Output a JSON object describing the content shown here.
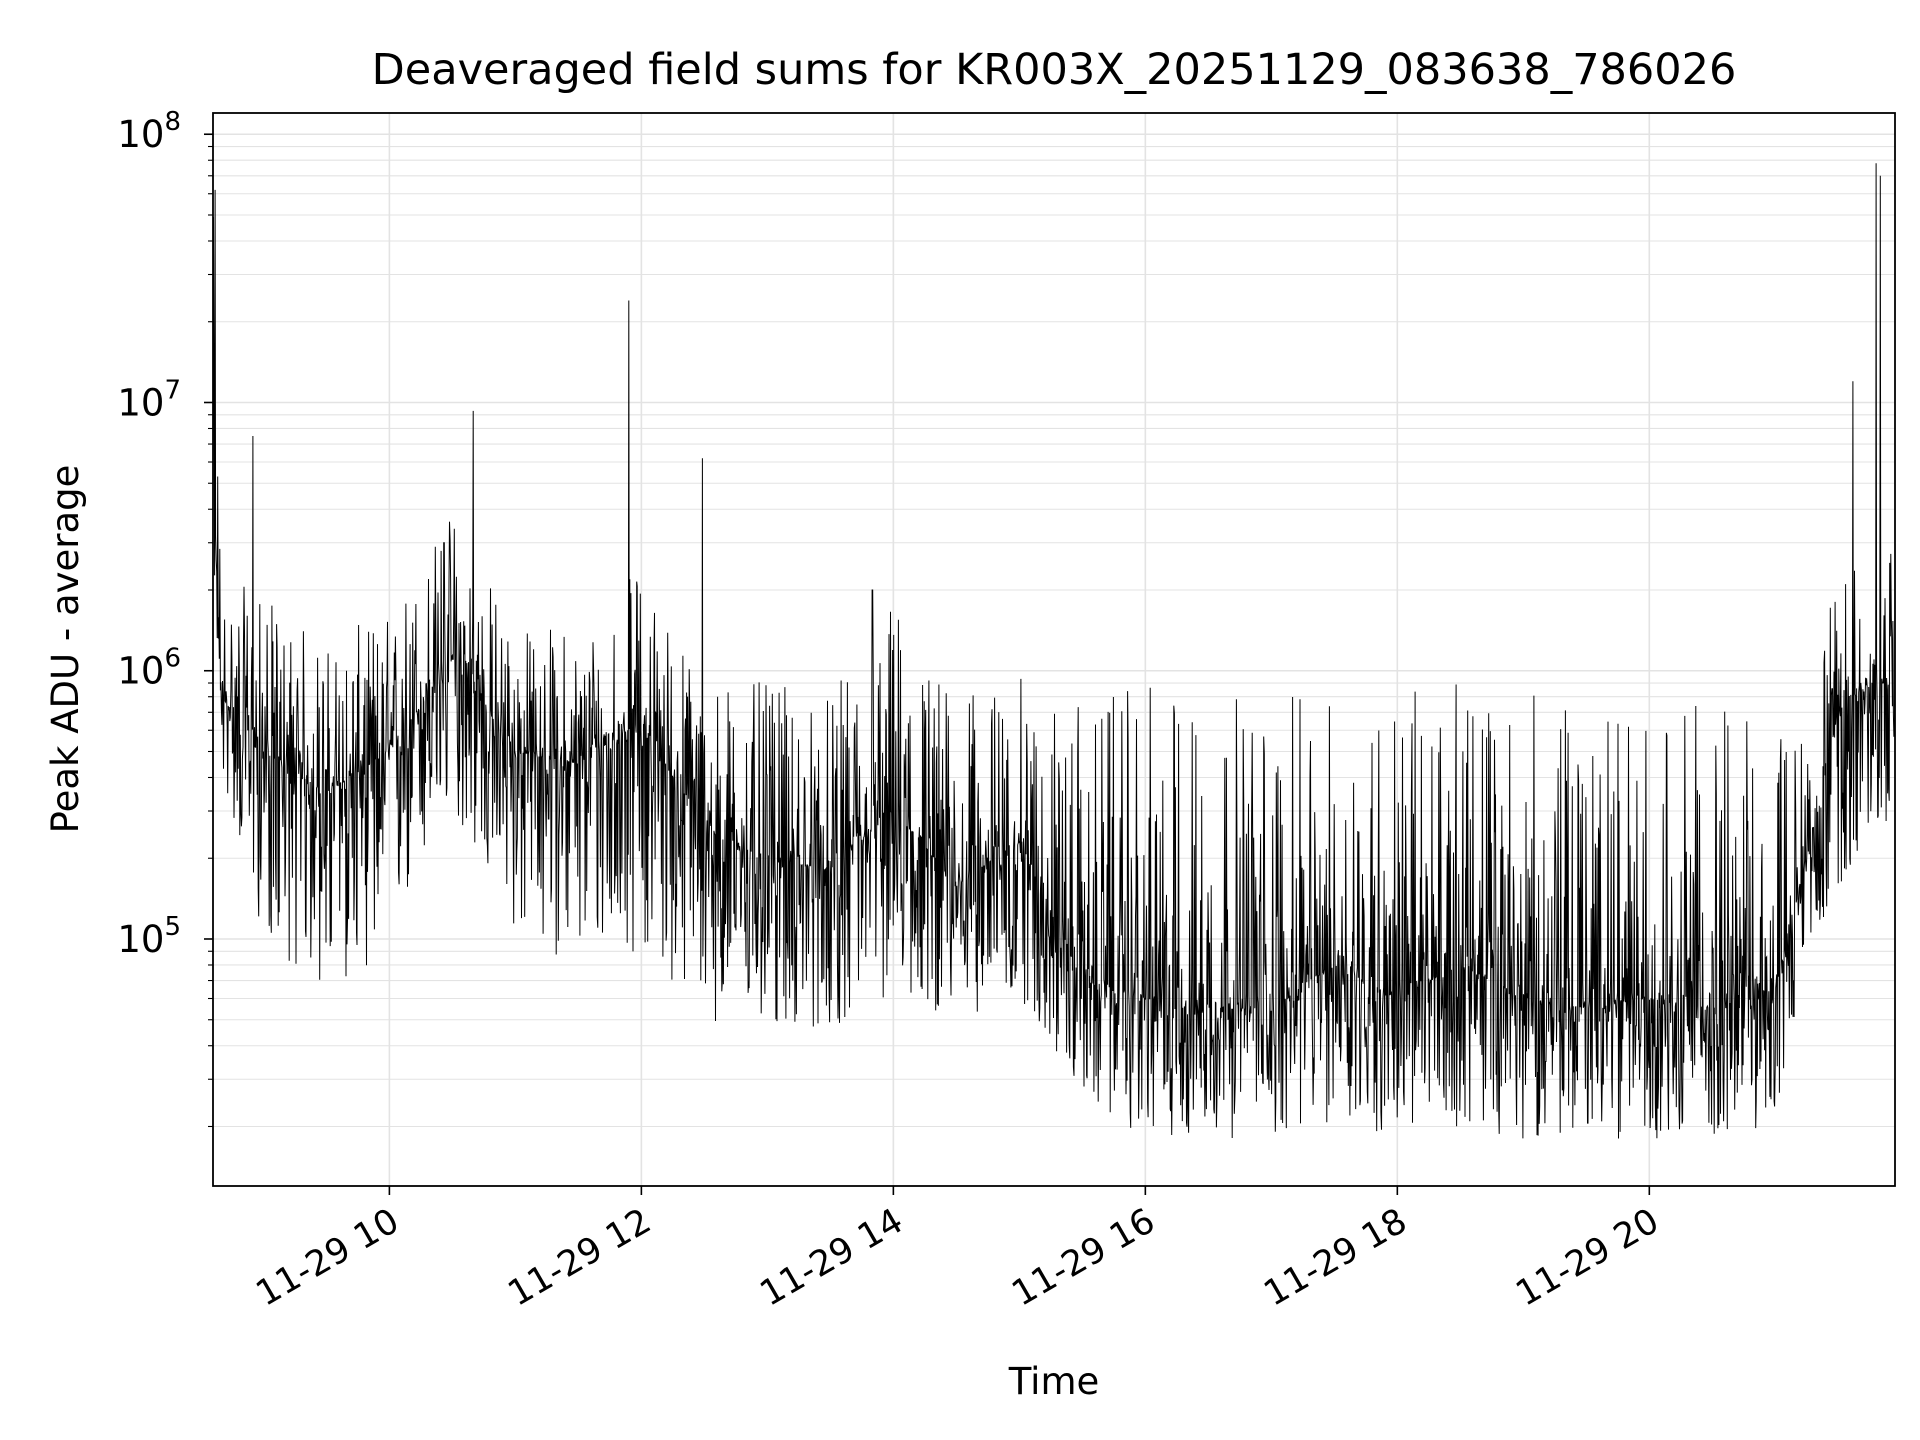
{
  "chart_data": {
    "type": "line",
    "title": "Deaveraged field sums for KR003X_20251129_083638_786026",
    "xlabel": "Time",
    "ylabel": "Peak ADU - average",
    "x_axis": {
      "kind": "datetime",
      "range": [
        "2025-11-29 08:36",
        "2025-11-29 21:57"
      ],
      "tick_values": [
        "2025-11-29 10:00",
        "2025-11-29 12:00",
        "2025-11-29 14:00",
        "2025-11-29 16:00",
        "2025-11-29 18:00",
        "2025-11-29 20:00"
      ],
      "tick_labels": [
        "11-29 10",
        "11-29 12",
        "11-29 14",
        "11-29 16",
        "11-29 18",
        "11-29 20"
      ],
      "tick_label_rotation": 30
    },
    "y_axis": {
      "scale": "log",
      "range": [
        12000,
        120000000
      ],
      "tick_values": [
        100000,
        1000000,
        10000000,
        100000000
      ],
      "tick_labels": [
        {
          "base": "10",
          "exp": "5"
        },
        {
          "base": "10",
          "exp": "6"
        },
        {
          "base": "10",
          "exp": "7"
        },
        {
          "base": "10",
          "exp": "8"
        }
      ]
    },
    "grid": {
      "major": true,
      "minor_y": true,
      "color": "#e3e3e3"
    },
    "line_color": "#000000",
    "series": [
      {
        "note": "dense noisy trace; approximate level and spread by time span (data units)",
        "segments": [
          {
            "t": "08:36",
            "median": 5000000,
            "low": 3000000,
            "high": 62000000
          },
          {
            "t": "08:40",
            "median": 800000,
            "low": 400000,
            "high": 2300000
          },
          {
            "t": "09:00",
            "median": 500000,
            "low": 100000,
            "high": 1900000
          },
          {
            "t": "09:30",
            "median": 350000,
            "low": 60000,
            "high": 1300000
          },
          {
            "t": "10:00",
            "median": 500000,
            "low": 90000,
            "high": 1700000
          },
          {
            "t": "10:30",
            "median": 1100000,
            "low": 300000,
            "high": 4300000
          },
          {
            "t": "11:00",
            "median": 500000,
            "low": 100000,
            "high": 1500000
          },
          {
            "t": "11:30",
            "median": 450000,
            "low": 80000,
            "high": 1500000
          },
          {
            "t": "12:00",
            "median": 650000,
            "low": 90000,
            "high": 2500000
          },
          {
            "t": "12:30",
            "median": 250000,
            "low": 50000,
            "high": 1000000
          },
          {
            "t": "13:00",
            "median": 200000,
            "low": 45000,
            "high": 900000
          },
          {
            "t": "13:30",
            "median": 180000,
            "low": 45000,
            "high": 800000
          },
          {
            "t": "14:00",
            "median": 300000,
            "low": 60000,
            "high": 2000000
          },
          {
            "t": "14:30",
            "median": 160000,
            "low": 50000,
            "high": 800000
          },
          {
            "t": "15:00",
            "median": 230000,
            "low": 60000,
            "high": 950000
          },
          {
            "t": "15:30",
            "median": 70000,
            "low": 25000,
            "high": 750000
          },
          {
            "t": "16:00",
            "median": 60000,
            "low": 18000,
            "high": 900000
          },
          {
            "t": "16:30",
            "median": 55000,
            "low": 18000,
            "high": 900000
          },
          {
            "t": "17:00",
            "median": 55000,
            "low": 18000,
            "high": 800000
          },
          {
            "t": "17:30",
            "median": 80000,
            "low": 20000,
            "high": 800000
          },
          {
            "t": "18:00",
            "median": 60000,
            "low": 18000,
            "high": 900000
          },
          {
            "t": "18:30",
            "median": 80000,
            "low": 20000,
            "high": 900000
          },
          {
            "t": "19:00",
            "median": 60000,
            "low": 18000,
            "high": 850000
          },
          {
            "t": "19:30",
            "median": 55000,
            "low": 18000,
            "high": 700000
          },
          {
            "t": "20:00",
            "median": 60000,
            "low": 18000,
            "high": 700000
          },
          {
            "t": "20:30",
            "median": 55000,
            "low": 18000,
            "high": 800000
          },
          {
            "t": "21:00",
            "median": 65000,
            "low": 20000,
            "high": 650000
          },
          {
            "t": "21:15",
            "median": 200000,
            "low": 90000,
            "high": 600000
          },
          {
            "t": "21:30",
            "median": 700000,
            "low": 150000,
            "high": 2500000
          },
          {
            "t": "21:45",
            "median": 900000,
            "low": 250000,
            "high": 3000000
          }
        ],
        "spikes": [
          {
            "t": "08:37",
            "value": 62000000
          },
          {
            "t": "08:55",
            "value": 7500000
          },
          {
            "t": "10:40",
            "value": 9300000
          },
          {
            "t": "10:26",
            "value": 3000000
          },
          {
            "t": "11:54",
            "value": 24000000
          },
          {
            "t": "12:29",
            "value": 6200000
          },
          {
            "t": "13:50",
            "value": 2000000
          },
          {
            "t": "21:37",
            "value": 12000000
          },
          {
            "t": "21:48",
            "value": 78000000
          },
          {
            "t": "21:50",
            "value": 70000000
          }
        ]
      }
    ]
  }
}
